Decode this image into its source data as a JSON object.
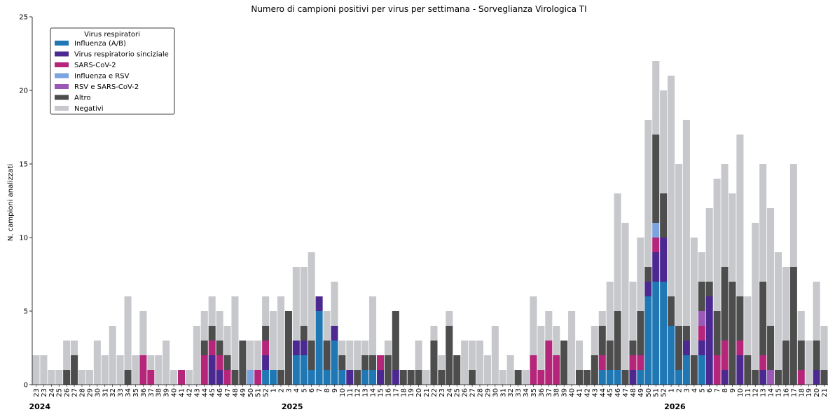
{
  "chart_data": {
    "type": "bar",
    "stacked": true,
    "title": "Numero di campioni positivi per virus per settimana - Sorveglianza Virologica TI",
    "xlabel": "",
    "ylabel": "N. campioni analizzati",
    "ylim": [
      0,
      25
    ],
    "yticks": [
      0,
      5,
      10,
      15,
      20,
      25
    ],
    "grid": false,
    "legend": {
      "title": "Virus respiratori",
      "placement": "top-left"
    },
    "year_labels": [
      {
        "label": "2024",
        "at_index": 0
      },
      {
        "label": "2025",
        "at_index": 33
      },
      {
        "label": "2026",
        "at_index": 83
      }
    ],
    "categories": [
      "23",
      "23",
      "24",
      "25",
      "26",
      "27",
      "28",
      "29",
      "30",
      "31",
      "32",
      "33",
      "34",
      "35",
      "36",
      "37",
      "38",
      "39",
      "40",
      "41",
      "42",
      "43",
      "44",
      "45",
      "46",
      "47",
      "48",
      "49",
      "50",
      "51",
      "52",
      "1",
      "2",
      "3",
      "4",
      "5",
      "6",
      "7",
      "8",
      "9",
      "10",
      "11",
      "12",
      "13",
      "14",
      "15",
      "16",
      "17",
      "18",
      "19",
      "20",
      "21",
      "22",
      "23",
      "24",
      "25",
      "26",
      "27",
      "28",
      "29",
      "30",
      "31",
      "32",
      "33",
      "34",
      "35",
      "36",
      "37",
      "38",
      "39",
      "40",
      "41",
      "42",
      "43",
      "44",
      "45",
      "46",
      "47",
      "48",
      "49",
      "50",
      "51",
      "52",
      "1",
      "2",
      "3",
      "4",
      "5",
      "6",
      "7",
      "8",
      "9",
      "10",
      "11",
      "12",
      "13",
      "14",
      "15",
      "16",
      "17",
      "18",
      "19",
      "20",
      "21"
    ],
    "series": [
      {
        "name": "Influenza (A/B)",
        "color": "#1f77b4",
        "values": [
          0,
          0,
          0,
          0,
          0,
          0,
          0,
          0,
          0,
          0,
          0,
          0,
          0,
          0,
          0,
          0,
          0,
          0,
          0,
          0,
          0,
          0,
          0,
          0,
          0,
          0,
          0,
          0,
          0,
          0,
          1,
          1,
          0,
          0,
          2,
          2,
          1,
          5,
          1,
          3,
          1,
          0,
          0,
          1,
          1,
          0,
          0,
          0,
          0,
          0,
          0,
          0,
          0,
          0,
          0,
          0,
          0,
          0,
          0,
          0,
          0,
          0,
          0,
          0,
          0,
          0,
          0,
          0,
          0,
          0,
          0,
          0,
          0,
          0,
          1,
          1,
          1,
          0,
          0,
          1,
          6,
          7,
          7,
          4,
          1,
          2,
          0,
          2,
          0,
          0,
          0,
          0,
          0,
          0,
          0,
          0,
          0,
          0,
          0,
          0,
          0,
          0,
          0,
          0
        ]
      },
      {
        "name": "Virus respiratorio sinciziale",
        "color": "#4b2991",
        "values": [
          0,
          0,
          0,
          0,
          0,
          0,
          0,
          0,
          0,
          0,
          0,
          0,
          0,
          0,
          0,
          0,
          0,
          0,
          0,
          0,
          0,
          0,
          0,
          2,
          1,
          0,
          0,
          0,
          0,
          0,
          1,
          0,
          0,
          0,
          1,
          1,
          0,
          1,
          0,
          1,
          0,
          1,
          0,
          0,
          0,
          1,
          0,
          1,
          0,
          0,
          0,
          0,
          0,
          0,
          0,
          0,
          0,
          0,
          0,
          0,
          0,
          0,
          0,
          0,
          0,
          0,
          0,
          0,
          0,
          0,
          0,
          0,
          0,
          0,
          0,
          0,
          0,
          0,
          1,
          0,
          1,
          2,
          3,
          0,
          0,
          1,
          0,
          1,
          6,
          0,
          1,
          0,
          2,
          0,
          0,
          1,
          0,
          0,
          0,
          0,
          0,
          0,
          1,
          0
        ]
      },
      {
        "name": "SARS-CoV-2",
        "color": "#b5267a",
        "values": [
          0,
          0,
          0,
          0,
          0,
          0,
          0,
          0,
          0,
          0,
          0,
          0,
          0,
          0,
          2,
          1,
          0,
          0,
          0,
          1,
          0,
          0,
          2,
          1,
          1,
          1,
          0,
          0,
          0,
          1,
          1,
          0,
          0,
          0,
          0,
          0,
          0,
          0,
          0,
          0,
          0,
          0,
          0,
          0,
          0,
          1,
          0,
          0,
          0,
          0,
          0,
          0,
          0,
          0,
          0,
          0,
          0,
          0,
          0,
          0,
          0,
          0,
          0,
          0,
          0,
          2,
          1,
          3,
          2,
          0,
          0,
          0,
          0,
          0,
          1,
          0,
          0,
          0,
          1,
          1,
          0,
          1,
          0,
          0,
          0,
          0,
          0,
          1,
          0,
          2,
          2,
          0,
          1,
          0,
          0,
          1,
          0,
          0,
          0,
          0,
          1,
          0,
          0,
          0
        ]
      },
      {
        "name": "Influenza e RSV",
        "color": "#7ba3e0",
        "values": [
          0,
          0,
          0,
          0,
          0,
          0,
          0,
          0,
          0,
          0,
          0,
          0,
          0,
          0,
          0,
          0,
          0,
          0,
          0,
          0,
          0,
          0,
          0,
          0,
          0,
          0,
          0,
          0,
          1,
          0,
          0,
          0,
          0,
          0,
          0,
          0,
          0,
          0,
          0,
          0,
          0,
          0,
          0,
          0,
          0,
          0,
          0,
          0,
          0,
          0,
          0,
          0,
          0,
          0,
          0,
          0,
          0,
          0,
          0,
          0,
          0,
          0,
          0,
          0,
          0,
          0,
          0,
          0,
          0,
          0,
          0,
          0,
          0,
          0,
          0,
          0,
          0,
          0,
          0,
          0,
          0,
          1,
          0,
          0,
          0,
          0,
          0,
          0,
          0,
          0,
          0,
          0,
          0,
          0,
          0,
          0,
          0,
          0,
          0,
          0,
          0,
          0,
          0,
          0
        ]
      },
      {
        "name": "RSV e SARS-CoV-2",
        "color": "#9b59b6",
        "values": [
          0,
          0,
          0,
          0,
          0,
          0,
          0,
          0,
          0,
          0,
          0,
          0,
          0,
          0,
          0,
          0,
          0,
          0,
          0,
          0,
          0,
          0,
          0,
          0,
          0,
          0,
          0,
          0,
          0,
          0,
          0,
          0,
          0,
          0,
          0,
          0,
          0,
          0,
          0,
          0,
          0,
          0,
          0,
          0,
          0,
          0,
          0,
          0,
          0,
          0,
          0,
          0,
          0,
          0,
          0,
          0,
          0,
          0,
          0,
          0,
          0,
          0,
          0,
          0,
          0,
          0,
          0,
          0,
          0,
          0,
          0,
          0,
          0,
          0,
          0,
          0,
          0,
          0,
          0,
          0,
          0,
          0,
          0,
          0,
          0,
          0,
          0,
          1,
          0,
          0,
          0,
          0,
          0,
          0,
          0,
          0,
          1,
          0,
          0,
          0,
          0,
          0,
          0,
          0
        ]
      },
      {
        "name": "Altro",
        "color": "#4d4d4d",
        "values": [
          0,
          0,
          0,
          0,
          1,
          2,
          0,
          0,
          0,
          0,
          0,
          0,
          1,
          0,
          0,
          0,
          0,
          0,
          0,
          0,
          0,
          0,
          1,
          1,
          1,
          1,
          1,
          3,
          0,
          0,
          1,
          0,
          1,
          5,
          0,
          1,
          2,
          0,
          2,
          0,
          1,
          0,
          1,
          1,
          1,
          0,
          2,
          4,
          1,
          1,
          1,
          0,
          3,
          1,
          4,
          2,
          0,
          1,
          0,
          0,
          0,
          0,
          0,
          1,
          0,
          0,
          0,
          0,
          0,
          3,
          0,
          1,
          1,
          2,
          2,
          2,
          4,
          1,
          1,
          3,
          1,
          6,
          3,
          2,
          3,
          1,
          2,
          2,
          1,
          3,
          5,
          7,
          3,
          2,
          1,
          5,
          3,
          1,
          3,
          8,
          2,
          0,
          2,
          1
        ]
      },
      {
        "name": "Negativi",
        "color": "#c7c8cc",
        "values": [
          2,
          2,
          1,
          1,
          2,
          1,
          1,
          1,
          3,
          2,
          4,
          2,
          5,
          2,
          3,
          1,
          2,
          3,
          1,
          0,
          1,
          4,
          2,
          2,
          2,
          2,
          5,
          0,
          2,
          2,
          2,
          4,
          5,
          0,
          5,
          4,
          6,
          0,
          2,
          3,
          1,
          2,
          2,
          1,
          4,
          0,
          1,
          0,
          0,
          0,
          2,
          1,
          1,
          1,
          1,
          0,
          3,
          2,
          3,
          2,
          4,
          1,
          2,
          0,
          1,
          4,
          3,
          2,
          2,
          0,
          5,
          2,
          0,
          2,
          1,
          4,
          8,
          10,
          4,
          5,
          10,
          5,
          7,
          15,
          11,
          14,
          8,
          2,
          5,
          9,
          7,
          6,
          11,
          4,
          10,
          8,
          8,
          8,
          5,
          7,
          2,
          3,
          4,
          3
        ]
      }
    ]
  }
}
